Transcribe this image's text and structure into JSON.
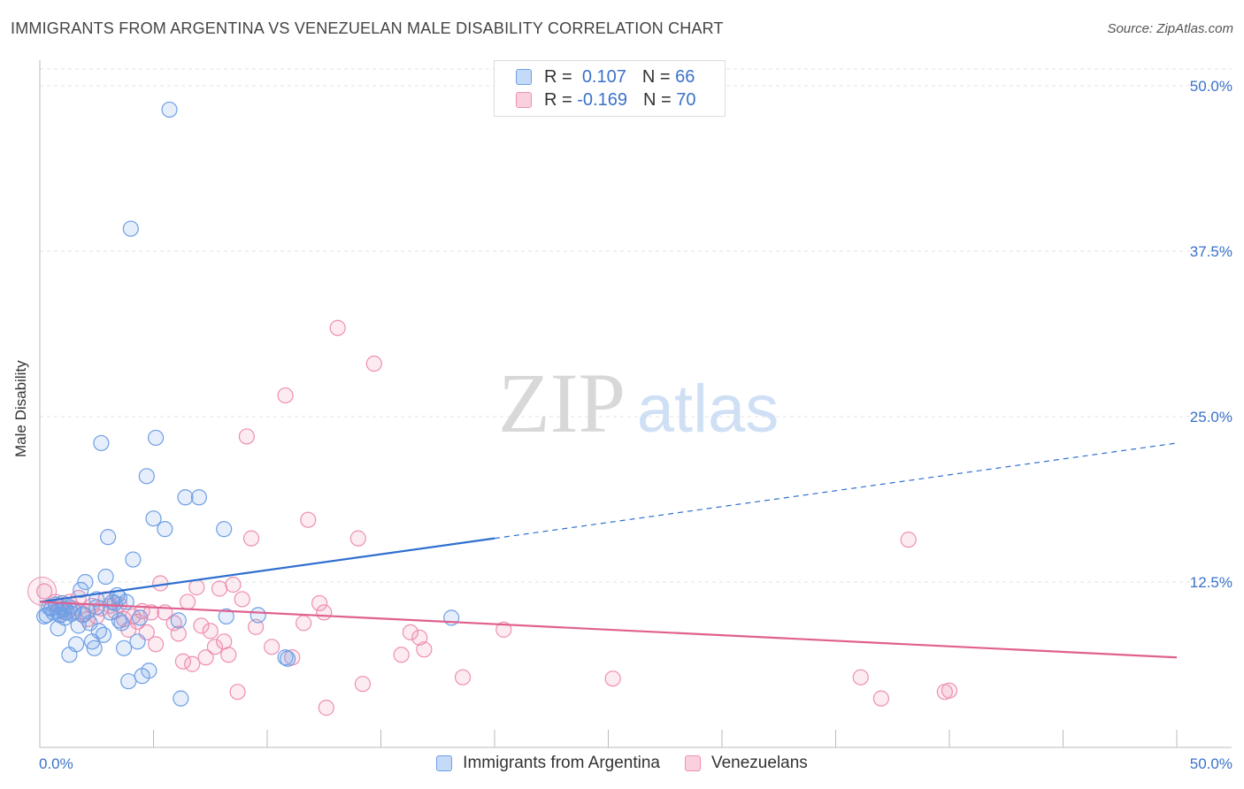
{
  "title": "IMMIGRANTS FROM ARGENTINA VS VENEZUELAN MALE DISABILITY CORRELATION CHART",
  "source": "Source: ZipAtlas.com",
  "colors": {
    "blue": "#6f9fe6",
    "blue_line": "#2f6fd0",
    "pink": "#ee8fb0",
    "pink_line": "#e0608e",
    "tick_text": "#3a72c8"
  },
  "legend_top": {
    "rows": [
      {
        "r_label": "R =",
        "r_value": "0.107",
        "n_label": "N =",
        "n_value": "66"
      },
      {
        "r_label": "R =",
        "r_value": "-0.169",
        "n_label": "N =",
        "n_value": "70"
      }
    ]
  },
  "chart_data": {
    "type": "scatter",
    "title": "IMMIGRANTS FROM ARGENTINA VS VENEZUELAN MALE DISABILITY CORRELATION CHART",
    "xlabel": "",
    "ylabel": "Male Disability",
    "xlim": [
      0,
      50
    ],
    "ylim": [
      0,
      50
    ],
    "x_tick_labels": [
      "0.0%",
      "50.0%"
    ],
    "y_ticks": [
      12.5,
      25.0,
      37.5,
      50.0
    ],
    "y_tick_labels": [
      "12.5%",
      "25.0%",
      "37.5%",
      "50.0%"
    ],
    "grid": true,
    "legend_position": "top-center",
    "series": [
      {
        "name": "Immigrants from Argentina",
        "r": 0.107,
        "n": 66,
        "trend": {
          "x0": 0,
          "y0": 11.0,
          "x1": 50,
          "y1": 23.0,
          "solid_until": 20
        },
        "points": [
          [
            0.3,
            10.0
          ],
          [
            0.5,
            10.5
          ],
          [
            0.6,
            10.2
          ],
          [
            0.7,
            10.8
          ],
          [
            0.8,
            10.3
          ],
          [
            0.9,
            10.0
          ],
          [
            1.0,
            10.4
          ],
          [
            1.1,
            9.8
          ],
          [
            1.2,
            10.2
          ],
          [
            1.3,
            10.6
          ],
          [
            1.4,
            10.1
          ],
          [
            1.5,
            10.3
          ],
          [
            0.8,
            9.0
          ],
          [
            1.3,
            7.0
          ],
          [
            1.6,
            7.8
          ],
          [
            1.7,
            9.2
          ],
          [
            1.8,
            11.9
          ],
          [
            1.9,
            10.0
          ],
          [
            2.0,
            12.5
          ],
          [
            2.1,
            10.3
          ],
          [
            2.2,
            9.4
          ],
          [
            2.3,
            8.0
          ],
          [
            2.4,
            7.5
          ],
          [
            2.5,
            11.2
          ],
          [
            2.6,
            8.8
          ],
          [
            2.7,
            23.0
          ],
          [
            2.8,
            8.5
          ],
          [
            2.9,
            12.9
          ],
          [
            3.0,
            15.9
          ],
          [
            3.1,
            10.2
          ],
          [
            3.2,
            11.0
          ],
          [
            3.4,
            11.5
          ],
          [
            3.5,
            11.3
          ],
          [
            3.6,
            9.4
          ],
          [
            3.7,
            7.5
          ],
          [
            3.8,
            11.0
          ],
          [
            3.9,
            5.0
          ],
          [
            4.0,
            39.2
          ],
          [
            4.1,
            14.2
          ],
          [
            4.3,
            8.0
          ],
          [
            4.4,
            9.8
          ],
          [
            4.5,
            5.4
          ],
          [
            4.7,
            20.5
          ],
          [
            4.8,
            5.8
          ],
          [
            5.0,
            17.3
          ],
          [
            5.1,
            23.4
          ],
          [
            5.5,
            16.5
          ],
          [
            5.7,
            48.2
          ],
          [
            6.1,
            9.6
          ],
          [
            6.2,
            3.7
          ],
          [
            6.4,
            18.9
          ],
          [
            7.0,
            18.9
          ],
          [
            8.1,
            16.5
          ],
          [
            8.2,
            9.9
          ],
          [
            9.6,
            10.0
          ],
          [
            10.9,
            6.7
          ],
          [
            18.1,
            9.8
          ],
          [
            0.2,
            9.9
          ],
          [
            0.4,
            10.6
          ],
          [
            1.0,
            10.9
          ],
          [
            2.5,
            10.6
          ],
          [
            3.3,
            10.9
          ],
          [
            3.5,
            9.6
          ],
          [
            0.9,
            10.0
          ],
          [
            1.1,
            10.5
          ],
          [
            10.8,
            6.8
          ]
        ]
      },
      {
        "name": "Venezuelans",
        "r": -0.169,
        "n": 70,
        "trend": {
          "x0": 0,
          "y0": 11.0,
          "x1": 50,
          "y1": 6.8
        },
        "points": [
          [
            0.2,
            11.8
          ],
          [
            0.5,
            10.5
          ],
          [
            0.7,
            11.0
          ],
          [
            0.9,
            10.6
          ],
          [
            1.1,
            10.2
          ],
          [
            1.3,
            11.0
          ],
          [
            1.5,
            10.5
          ],
          [
            1.7,
            11.3
          ],
          [
            1.9,
            10.1
          ],
          [
            2.1,
            9.7
          ],
          [
            2.3,
            10.7
          ],
          [
            2.5,
            9.9
          ],
          [
            2.7,
            10.5
          ],
          [
            2.9,
            11.2
          ],
          [
            3.1,
            10.7
          ],
          [
            3.3,
            10.3
          ],
          [
            3.5,
            10.8
          ],
          [
            3.7,
            9.7
          ],
          [
            3.9,
            8.9
          ],
          [
            4.1,
            9.9
          ],
          [
            4.3,
            9.5
          ],
          [
            4.5,
            10.3
          ],
          [
            4.7,
            8.7
          ],
          [
            4.9,
            10.2
          ],
          [
            5.1,
            7.8
          ],
          [
            5.3,
            12.4
          ],
          [
            5.5,
            10.2
          ],
          [
            5.9,
            9.4
          ],
          [
            6.1,
            8.6
          ],
          [
            6.3,
            6.5
          ],
          [
            6.5,
            11.0
          ],
          [
            6.7,
            6.3
          ],
          [
            6.9,
            12.1
          ],
          [
            7.1,
            9.2
          ],
          [
            7.3,
            6.8
          ],
          [
            7.5,
            8.8
          ],
          [
            7.7,
            7.6
          ],
          [
            7.9,
            12.0
          ],
          [
            8.1,
            8.0
          ],
          [
            8.3,
            7.0
          ],
          [
            8.5,
            12.3
          ],
          [
            8.7,
            4.2
          ],
          [
            8.9,
            11.2
          ],
          [
            9.1,
            23.5
          ],
          [
            9.3,
            15.8
          ],
          [
            9.5,
            9.1
          ],
          [
            10.2,
            7.6
          ],
          [
            10.8,
            26.6
          ],
          [
            11.1,
            6.8
          ],
          [
            11.6,
            9.4
          ],
          [
            11.8,
            17.2
          ],
          [
            12.3,
            10.9
          ],
          [
            12.5,
            10.2
          ],
          [
            12.6,
            3.0
          ],
          [
            13.1,
            31.7
          ],
          [
            14.0,
            15.8
          ],
          [
            14.2,
            4.8
          ],
          [
            14.7,
            29.0
          ],
          [
            15.9,
            7.0
          ],
          [
            16.3,
            8.7
          ],
          [
            16.7,
            8.3
          ],
          [
            16.9,
            7.4
          ],
          [
            18.6,
            5.3
          ],
          [
            20.4,
            8.9
          ],
          [
            25.2,
            5.2
          ],
          [
            36.1,
            5.3
          ],
          [
            37.0,
            3.7
          ],
          [
            38.2,
            15.7
          ],
          [
            39.8,
            4.2
          ],
          [
            40.0,
            4.3
          ]
        ]
      }
    ]
  },
  "legend_bottom": {
    "items": [
      {
        "label": "Immigrants from Argentina"
      },
      {
        "label": "Venezuelans"
      }
    ]
  },
  "watermark": {
    "part1": "ZIP",
    "part2": "atlas"
  }
}
